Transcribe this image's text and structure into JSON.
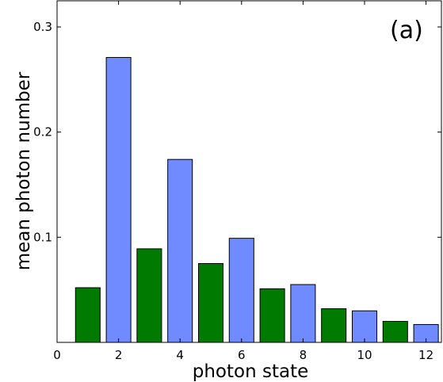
{
  "chart_data": {
    "type": "bar",
    "panel_label": "(a)",
    "xlabel": "photon state",
    "ylabel": "mean photon number",
    "xlim": [
      0,
      12.5
    ],
    "ylim": [
      0,
      0.3
    ],
    "xticks": [
      0,
      2,
      4,
      6,
      8,
      10,
      12
    ],
    "yticks": [
      0.1,
      0.2,
      0.3
    ],
    "ytick_labels": [
      "0.1",
      "0.2",
      "0.3"
    ],
    "grid": false,
    "bar_width": 0.8,
    "colors": {
      "odd": "#007a00",
      "even": "#6f8bff",
      "edge": "#000000"
    },
    "x": [
      1,
      2,
      3,
      4,
      5,
      6,
      7,
      8,
      9,
      10,
      11,
      12
    ],
    "values": [
      0.052,
      0.271,
      0.089,
      0.174,
      0.075,
      0.099,
      0.051,
      0.055,
      0.032,
      0.03,
      0.02,
      0.017
    ]
  }
}
